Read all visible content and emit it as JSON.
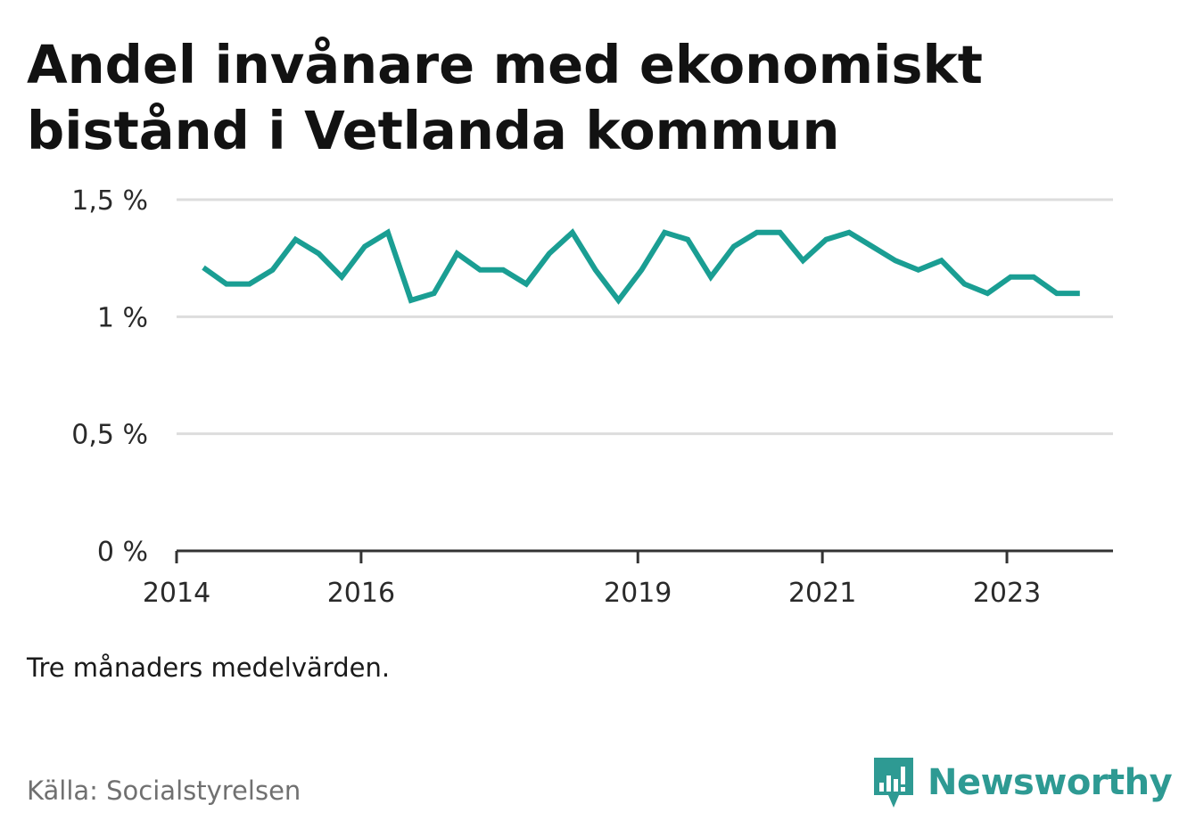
{
  "title": "Andel invånare med ekonomiskt bistånd i Vetlanda kommun",
  "note": "Tre månaders medelvärden.",
  "source": "Källa: Socialstyrelsen",
  "brand": {
    "name": "Newsworthy",
    "color": "#2e9a93"
  },
  "colors": {
    "line": "#1a9e93",
    "grid": "#dddddd",
    "axis": "#333333"
  },
  "chart_data": {
    "type": "line",
    "title": "Andel invånare med ekonomiskt bistånd i Vetlanda kommun",
    "xlabel": "",
    "ylabel": "",
    "ylim": [
      0,
      1.5
    ],
    "yticks": [
      {
        "value": 0,
        "label": "0 %"
      },
      {
        "value": 0.5,
        "label": "0,5 %"
      },
      {
        "value": 1,
        "label": "1 %"
      },
      {
        "value": 1.5,
        "label": "1,5 %"
      }
    ],
    "xlim": [
      2014.0,
      2024.15
    ],
    "xticks": [
      {
        "value": 2014,
        "label": "2014"
      },
      {
        "value": 2016,
        "label": "2016"
      },
      {
        "value": 2019,
        "label": "2019"
      },
      {
        "value": 2021,
        "label": "2021"
      },
      {
        "value": 2023,
        "label": "2023"
      }
    ],
    "series": [
      {
        "name": "Andel invånare med ekonomiskt bistånd",
        "x": [
          2014.29,
          2014.54,
          2014.79,
          2015.04,
          2015.29,
          2015.54,
          2015.79,
          2016.04,
          2016.29,
          2016.54,
          2016.79,
          2017.04,
          2017.29,
          2017.54,
          2017.79,
          2018.04,
          2018.29,
          2018.54,
          2018.79,
          2019.04,
          2019.29,
          2019.54,
          2019.79,
          2020.04,
          2020.29,
          2020.54,
          2020.79,
          2021.04,
          2021.29,
          2021.54,
          2021.79,
          2022.04,
          2022.29,
          2022.54,
          2022.79,
          2023.04,
          2023.29,
          2023.54,
          2023.79
        ],
        "values": [
          1.21,
          1.14,
          1.14,
          1.2,
          1.33,
          1.27,
          1.17,
          1.3,
          1.36,
          1.07,
          1.1,
          1.27,
          1.2,
          1.2,
          1.14,
          1.27,
          1.36,
          1.2,
          1.07,
          1.2,
          1.36,
          1.33,
          1.17,
          1.3,
          1.36,
          1.36,
          1.24,
          1.33,
          1.36,
          1.3,
          1.24,
          1.2,
          1.24,
          1.14,
          1.1,
          1.17,
          1.17,
          1.1,
          1.1
        ]
      }
    ]
  }
}
